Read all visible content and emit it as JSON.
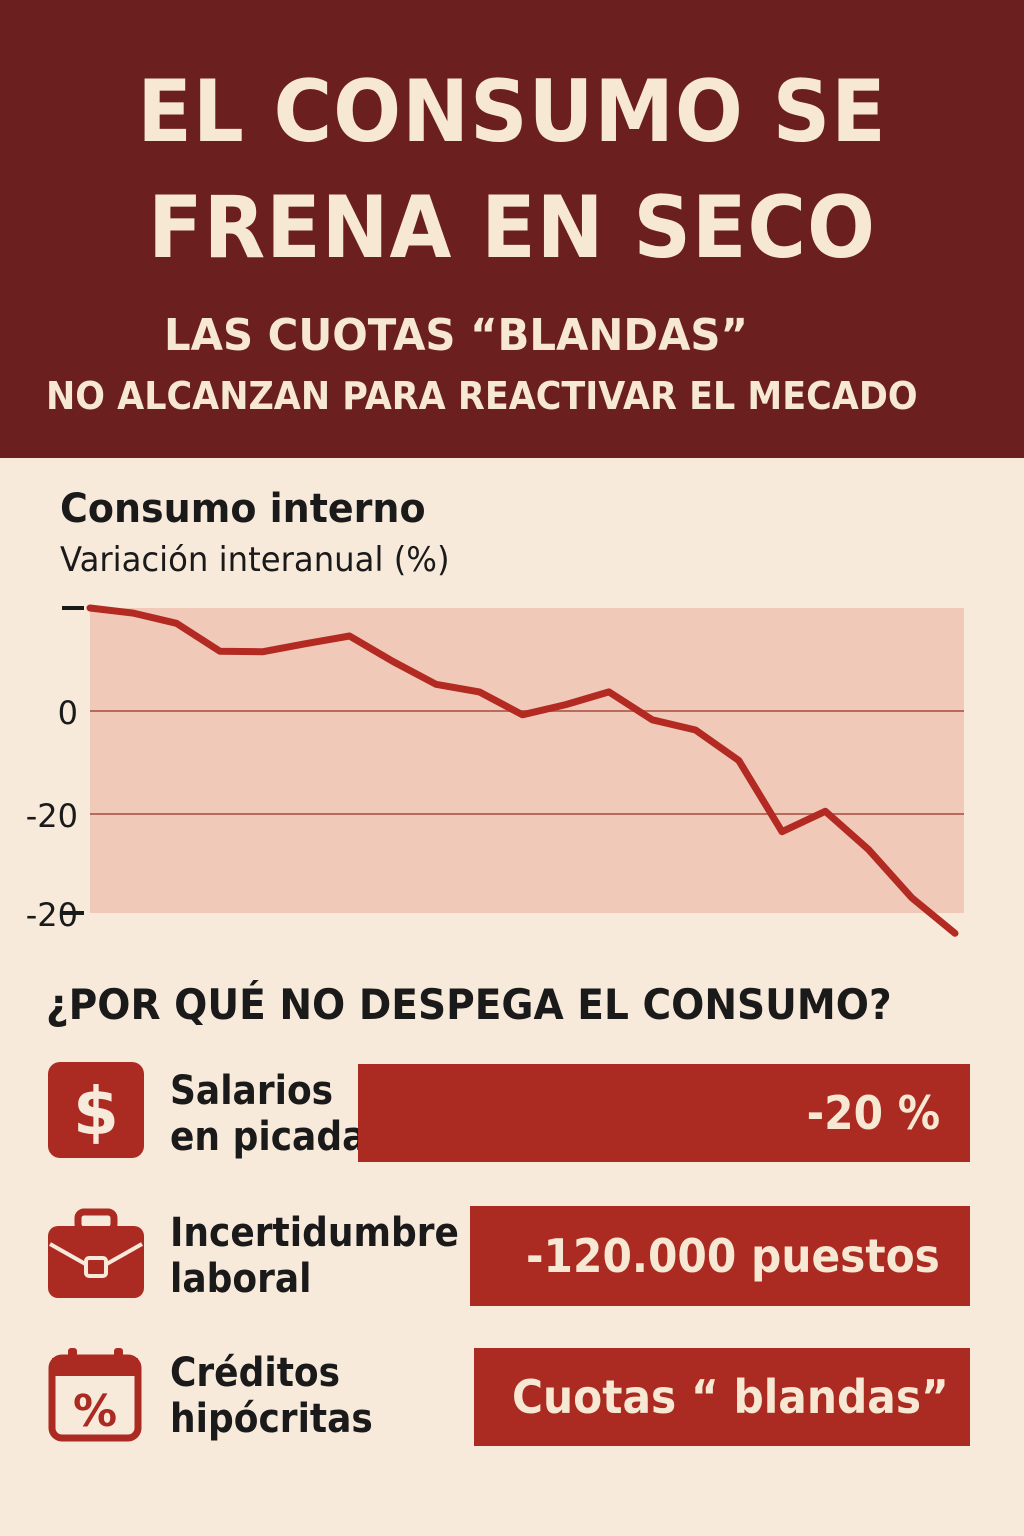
{
  "header": {
    "title_line1": "EL CONSUMO SE",
    "title_line2": "FRENA EN SECO",
    "subtitle_line1": "LAS CUOTAS “BLANDAS”",
    "subtitle_line2": "NO ALCANZAN PARA REACTIVAR EL MECADO"
  },
  "colors": {
    "header_bg": "#6b1f1f",
    "page_bg": "#f8eadb",
    "accent_red": "#ab2a22",
    "chart_band": "#f1c9b8",
    "text_light": "#f6e8d2"
  },
  "chart_data": {
    "type": "line",
    "title": "Consumo interno",
    "subtitle": "Variación interanual (%)",
    "y_tick_labels": [
      "",
      "0",
      "-20",
      "-20"
    ],
    "y_tick_marks_with_dash": [
      true,
      false,
      false,
      true
    ],
    "ylim": [
      -40,
      20
    ],
    "grid": true,
    "series": [
      {
        "color": "#b22a22",
        "values": [
          20,
          19,
          17,
          11.5,
          11.4,
          13,
          14.5,
          9.5,
          5,
          3.5,
          -1,
          1,
          3.5,
          -2,
          -4,
          -10,
          -24,
          -20,
          -27.5,
          -37,
          -44
        ]
      }
    ]
  },
  "question": "¿POR QUÉ NO DESPEGA EL CONSUMO?",
  "reasons": [
    {
      "icon": "dollar-icon",
      "label_line1": "Salarios",
      "label_line2": "en picada",
      "value": "-20 %"
    },
    {
      "icon": "briefcase-icon",
      "label_line1": "Incertidumbre",
      "label_line2": "laboral",
      "value": "-120.000 puestos"
    },
    {
      "icon": "calendar-percent-icon",
      "label_line1": "Créditos",
      "label_line2": "hipócritas",
      "value": "Cuotas “ blandas”"
    }
  ]
}
